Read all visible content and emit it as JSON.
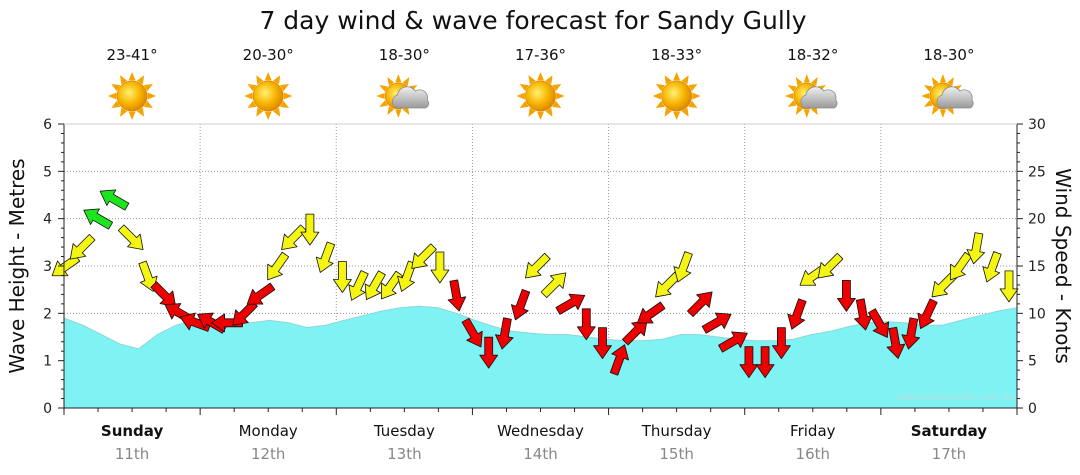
{
  "chart_data": {
    "type": "area",
    "title": "7 day wind & wave forecast for Sandy Gully",
    "ylabel_left": "Wave Height - Metres",
    "ylabel_right": "Wind Speed - Knots",
    "watermark": "www.seabreeze.com.au",
    "ylim_left": [
      0,
      6
    ],
    "ylim_right": [
      0,
      30
    ],
    "yticks_left": [
      "0",
      "1",
      "2",
      "3",
      "4",
      "5",
      "6"
    ],
    "yticks_right": [
      "0",
      "5",
      "10",
      "15",
      "20",
      "25",
      "30"
    ],
    "grid": true,
    "days": [
      {
        "name": "Sunday",
        "date": "11th",
        "temp": "23-41°",
        "weather": "sunny-icon",
        "bold": true
      },
      {
        "name": "Monday",
        "date": "12th",
        "temp": "20-30°",
        "weather": "sunny-icon",
        "bold": false
      },
      {
        "name": "Tuesday",
        "date": "13th",
        "temp": "18-30°",
        "weather": "partly-cloudy-icon",
        "bold": false
      },
      {
        "name": "Wednesday",
        "date": "14th",
        "temp": "17-36°",
        "weather": "sunny-icon",
        "bold": false
      },
      {
        "name": "Thursday",
        "date": "15th",
        "temp": "18-33°",
        "weather": "sunny-icon",
        "bold": false
      },
      {
        "name": "Friday",
        "date": "16th",
        "temp": "18-32°",
        "weather": "partly-cloudy-icon",
        "bold": false
      },
      {
        "name": "Saturday",
        "date": "17th",
        "temp": "18-30°",
        "weather": "partly-cloudy-icon",
        "bold": true
      }
    ],
    "wave_height_m": [
      1.9,
      1.75,
      1.55,
      1.35,
      1.25,
      1.55,
      1.75,
      1.85,
      1.8,
      1.8,
      1.8,
      1.85,
      1.8,
      1.7,
      1.75,
      1.85,
      1.95,
      2.05,
      2.12,
      2.15,
      2.12,
      2.0,
      1.85,
      1.72,
      1.62,
      1.58,
      1.55,
      1.55,
      1.5,
      1.45,
      1.42,
      1.42,
      1.45,
      1.55,
      1.55,
      1.5,
      1.45,
      1.42,
      1.42,
      1.45,
      1.55,
      1.62,
      1.72,
      1.8,
      1.82,
      1.8,
      1.75,
      1.75,
      1.85,
      1.95,
      2.05,
      2.12
    ],
    "wind_knots": [
      15,
      17,
      20,
      22,
      18,
      14,
      12,
      10,
      9,
      9,
      9,
      10,
      12,
      15,
      18,
      19,
      16,
      14,
      13,
      13,
      13,
      14,
      16,
      15,
      12,
      8,
      6,
      8,
      11,
      15,
      13,
      11,
      9,
      7,
      5,
      8,
      10,
      13,
      15,
      11,
      9,
      7,
      5,
      5,
      7,
      10,
      14,
      15,
      12,
      10,
      9,
      7,
      8,
      10,
      13,
      15,
      17,
      15,
      13
    ],
    "wind_direction_deg": [
      235,
      225,
      300,
      300,
      135,
      160,
      135,
      300,
      290,
      300,
      270,
      225,
      235,
      215,
      225,
      180,
      200,
      180,
      205,
      210,
      215,
      200,
      225,
      180,
      170,
      150,
      180,
      190,
      200,
      225,
      45,
      60,
      180,
      180,
      20,
      45,
      235,
      225,
      200,
      45,
      60,
      60,
      180,
      180,
      180,
      200,
      235,
      225,
      180,
      170,
      150,
      170,
      190,
      205,
      225,
      215,
      190,
      200,
      180
    ],
    "wind_colors": {
      "strong": "#1de51d",
      "moderate": "#f5f514",
      "light": "#ec0000"
    },
    "wave_color": "#7ff3f3"
  }
}
